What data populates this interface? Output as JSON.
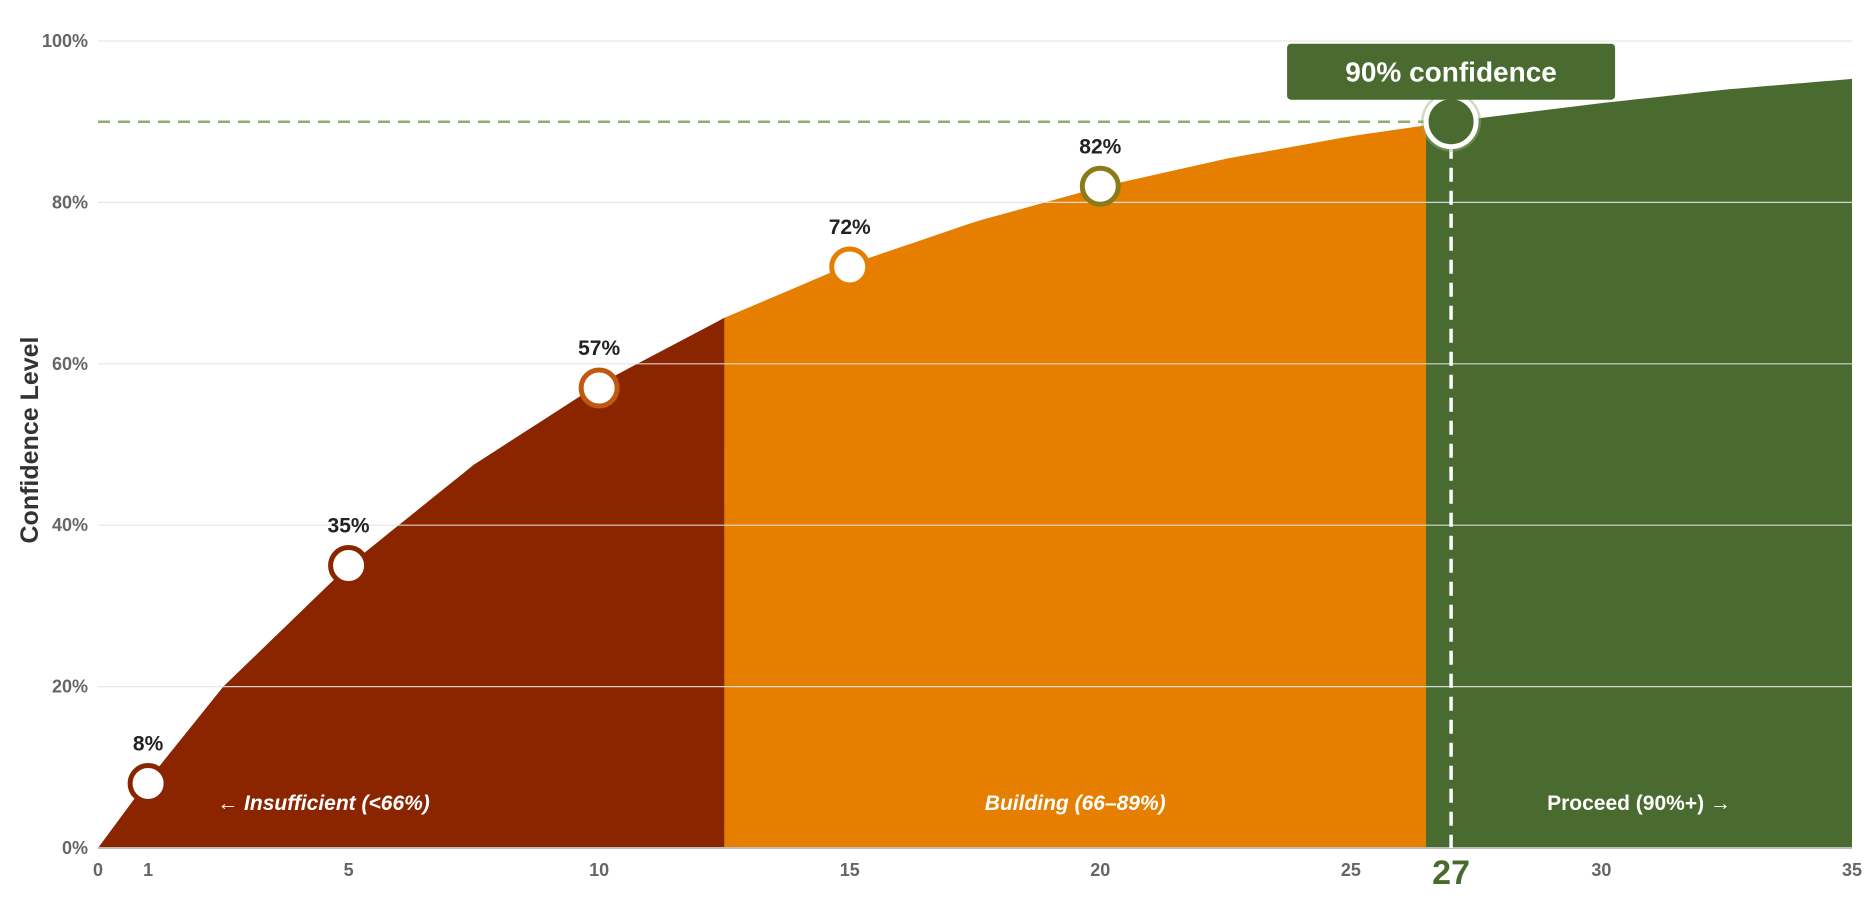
{
  "chart_data": {
    "type": "area",
    "title": "",
    "xlabel": "",
    "ylabel": "Confidence Level",
    "xlim": [
      0,
      35
    ],
    "ylim": [
      0,
      100
    ],
    "x_ticks": [
      0,
      1,
      5,
      10,
      15,
      20,
      25,
      27,
      30,
      35
    ],
    "x_tick_labels": [
      "0",
      "1",
      "5",
      "10",
      "15",
      "20",
      "25",
      "27",
      "30",
      "35"
    ],
    "highlight_x": 27,
    "y_ticks": [
      0,
      20,
      40,
      60,
      80,
      100
    ],
    "y_tick_labels": [
      "0%",
      "20%",
      "40%",
      "60%",
      "80%",
      "100%"
    ],
    "grid": "horizontal",
    "curve": {
      "x": [
        0,
        1,
        2.5,
        5,
        7.5,
        10,
        12.5,
        15,
        17.5,
        20,
        22.5,
        25,
        27,
        30,
        32.5,
        35
      ],
      "y": [
        0,
        8.4,
        20,
        35,
        47.5,
        57.5,
        65.7,
        72.3,
        77.6,
        81.9,
        85.4,
        88.2,
        90,
        92.3,
        94,
        95.3
      ]
    },
    "points": [
      {
        "x": 1,
        "y": 8,
        "label": "8%",
        "color": "#8b2500"
      },
      {
        "x": 5,
        "y": 35,
        "label": "35%",
        "color": "#8b2500"
      },
      {
        "x": 10,
        "y": 57,
        "label": "57%",
        "color": "#c0580e"
      },
      {
        "x": 15,
        "y": 72,
        "label": "72%",
        "color": "#e67e00"
      },
      {
        "x": 20,
        "y": 82,
        "label": "82%",
        "color": "#8a7a18"
      }
    ],
    "target": {
      "x": 27,
      "y": 90,
      "label": "90% confidence",
      "color": "#4a6b2f"
    },
    "threshold_y": 90,
    "zones": [
      {
        "label": "← Insufficient (<66%)",
        "x_start": 0,
        "x_end": 12.5,
        "color": "#8b2500",
        "italic": true
      },
      {
        "label": "Building (66–89%)",
        "x_start": 12.5,
        "x_end": 26.5,
        "color": "#e67e00",
        "italic": true
      },
      {
        "label": "Proceed (90%+) →",
        "x_start": 26.5,
        "x_end": 35,
        "color": "#4a6b2f",
        "italic": false
      }
    ]
  }
}
